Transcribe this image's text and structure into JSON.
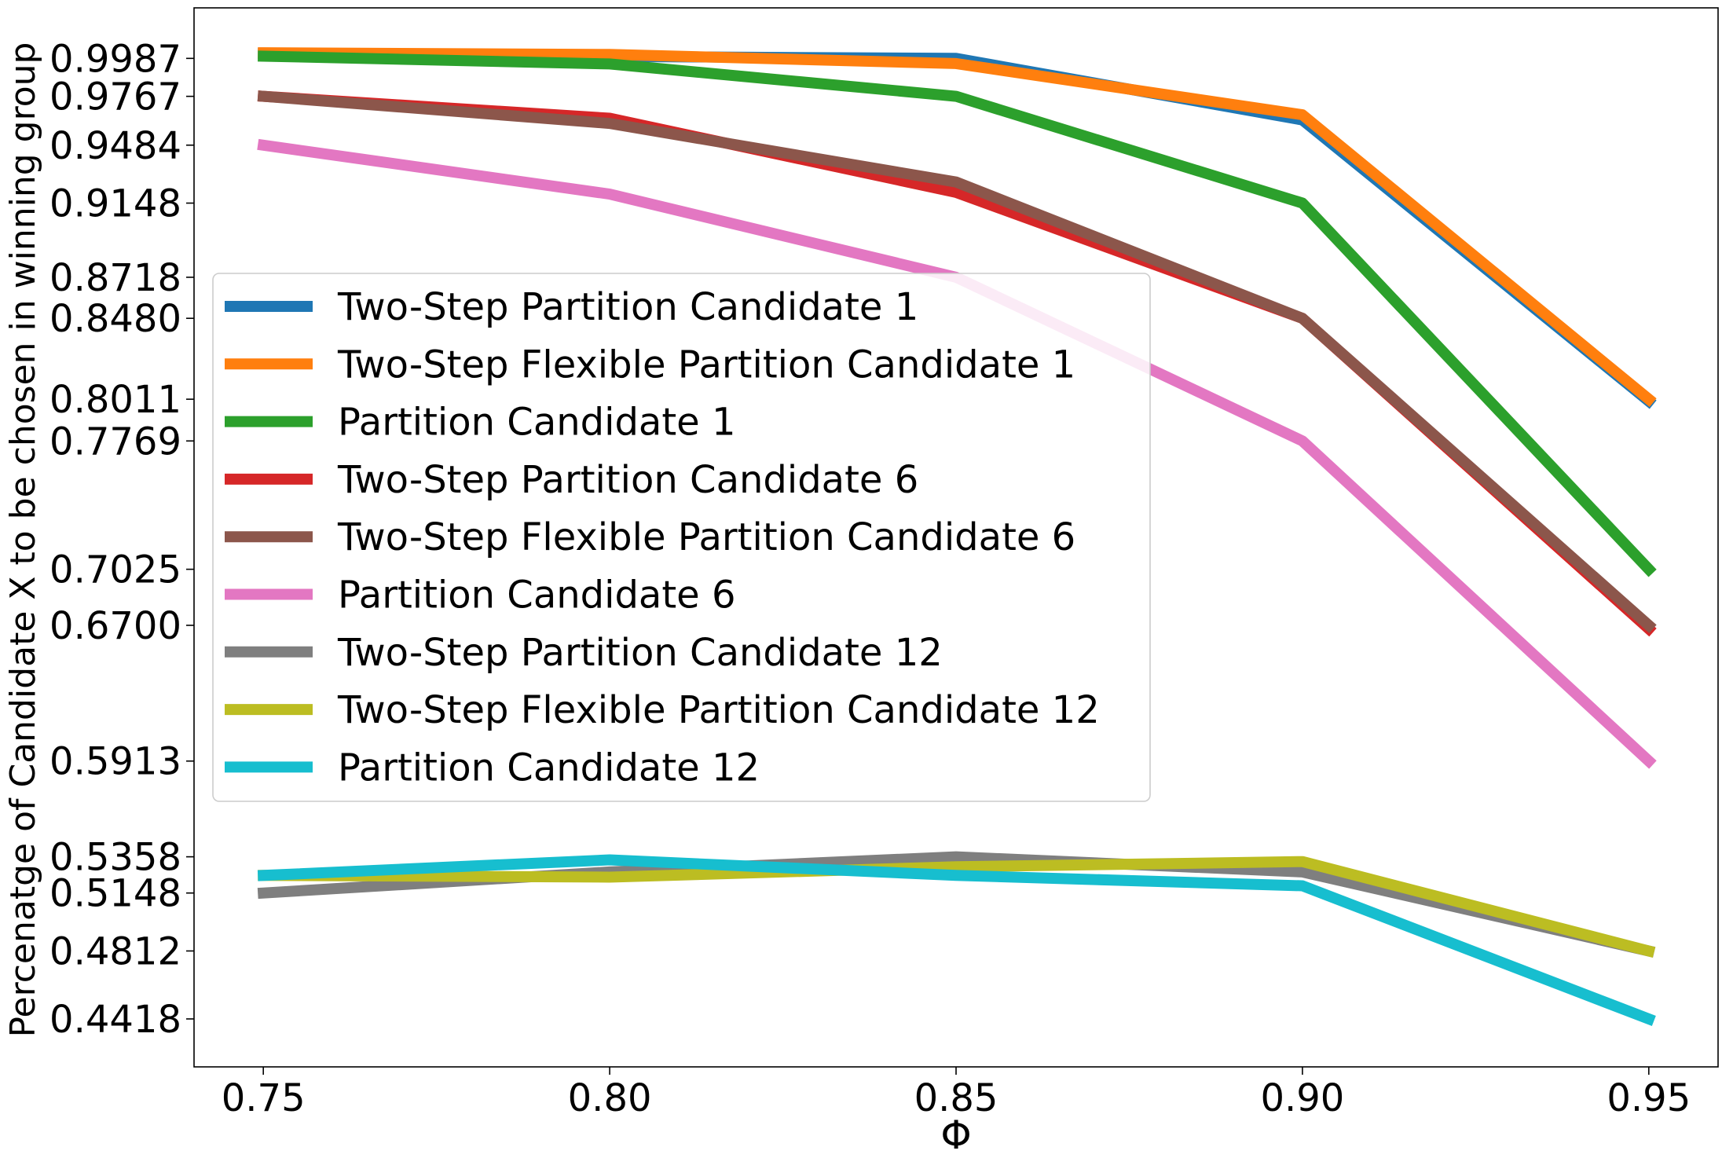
{
  "chart_data": {
    "type": "line",
    "title": "",
    "xlabel": "Φ",
    "ylabel": "Percenatge of Candidate X to be chosen in winning group",
    "x": [
      0.75,
      0.8,
      0.85,
      0.9,
      0.95
    ],
    "x_tick_labels": [
      "0.75",
      "0.80",
      "0.85",
      "0.90",
      "0.95"
    ],
    "xlim": [
      0.74,
      0.96
    ],
    "y_ticks": [
      0.9987,
      0.9767,
      0.9484,
      0.9148,
      0.8718,
      0.848,
      0.8011,
      0.7769,
      0.7025,
      0.67,
      0.5913,
      0.5358,
      0.5148,
      0.4812,
      0.4418
    ],
    "y_tick_labels": [
      "0.9987",
      "0.9767",
      "0.9484",
      "0.9148",
      "0.8718",
      "0.8480",
      "0.8011",
      "0.7769",
      "0.7025",
      "0.6700",
      "0.5913",
      "0.5358",
      "0.5148",
      "0.4812",
      "0.4418"
    ],
    "ylim": [
      0.414,
      1.028
    ],
    "grid": false,
    "legend_position": "center-left",
    "series": [
      {
        "name": "Two-Step Partition Candidate 1",
        "color": "#1f77b4",
        "values": [
          1.0015,
          0.9998,
          0.9987,
          0.963,
          0.8
        ]
      },
      {
        "name": "Two-Step Flexible Partition Candidate 1",
        "color": "#ff7f0e",
        "values": [
          1.002,
          1.001,
          0.9957,
          0.966,
          0.8011
        ]
      },
      {
        "name": "Partition Candidate 1",
        "color": "#2ca02c",
        "values": [
          1.0,
          0.9955,
          0.9767,
          0.9148,
          0.7025
        ]
      },
      {
        "name": "Two-Step Partition Candidate 6",
        "color": "#d62728",
        "values": [
          0.9767,
          0.964,
          0.921,
          0.848,
          0.668
        ]
      },
      {
        "name": "Two-Step Flexible Partition Candidate 6",
        "color": "#8c564b",
        "values": [
          0.9767,
          0.961,
          0.927,
          0.848,
          0.67
        ]
      },
      {
        "name": "Partition Candidate 6",
        "color": "#e377c2",
        "values": [
          0.9484,
          0.92,
          0.8718,
          0.7769,
          0.5913
        ]
      },
      {
        "name": "Two-Step Partition Candidate 12",
        "color": "#7f7f7f",
        "values": [
          0.5148,
          0.527,
          0.5358,
          0.527,
          0.4812
        ]
      },
      {
        "name": "Two-Step Flexible Partition Candidate 12",
        "color": "#bcbd22",
        "values": [
          0.525,
          0.524,
          0.53,
          0.533,
          0.4812
        ]
      },
      {
        "name": "Partition Candidate 12",
        "color": "#17becf",
        "values": [
          0.525,
          0.534,
          0.525,
          0.519,
          0.4418
        ]
      }
    ]
  }
}
